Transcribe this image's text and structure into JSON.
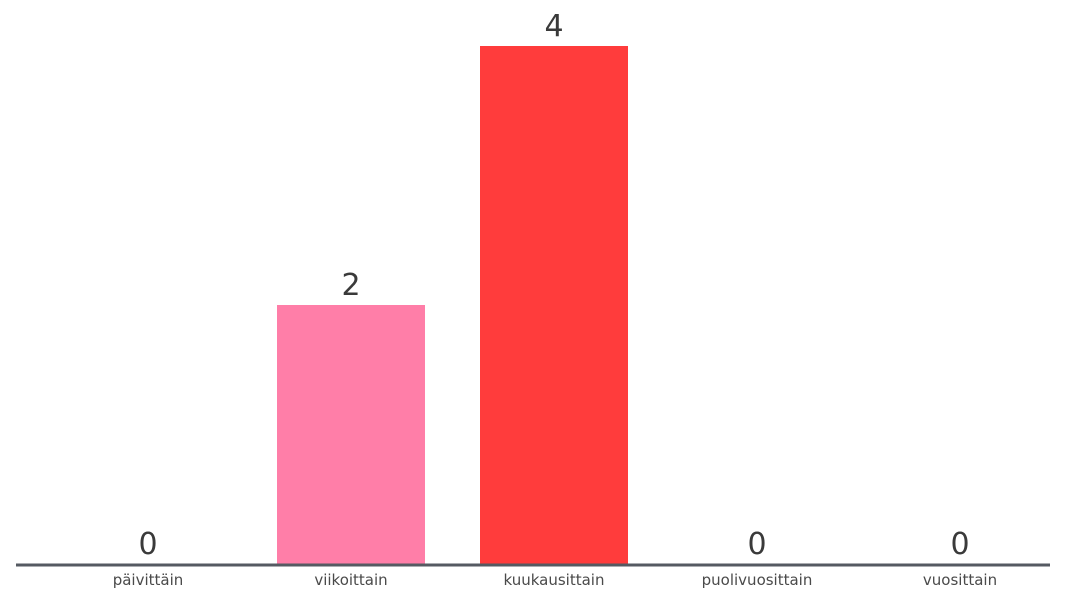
{
  "chart_data": {
    "type": "bar",
    "categories": [
      "päivittäin",
      "viikoittain",
      "kuukausittain",
      "puolivuosittain",
      "vuosittain"
    ],
    "values": [
      0,
      2,
      4,
      0,
      0
    ],
    "colors": [
      "#ff7ea8",
      "#ff7ea8",
      "#ff3c3c",
      "#ff7ea8",
      "#ff7ea8"
    ],
    "title": "",
    "xlabel": "",
    "ylabel": "",
    "ylim": [
      0,
      4
    ],
    "grid": false,
    "legend": "none",
    "axis_color": "#555a62"
  }
}
